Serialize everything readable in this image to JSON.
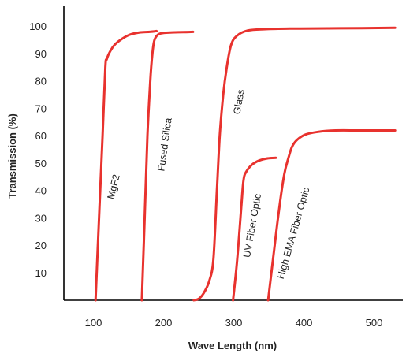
{
  "chart_data": {
    "type": "line",
    "title": "",
    "xlabel": "Wave Length (nm)",
    "ylabel": "Transmission (%)",
    "xlim": [
      50,
      530
    ],
    "ylim": [
      0,
      105
    ],
    "x_ticks": [
      100,
      200,
      300,
      400,
      500
    ],
    "y_ticks": [
      10,
      20,
      30,
      40,
      50,
      60,
      70,
      80,
      90,
      100
    ],
    "grid": false,
    "line_color": "#e8322e",
    "series": [
      {
        "name": "MgF2",
        "x": [
          103,
          108,
          113,
          117,
          119,
          124,
          131,
          141,
          152,
          166,
          180,
          190
        ],
        "y": [
          0,
          30,
          60,
          85,
          88,
          91,
          93.5,
          95.5,
          97,
          97.8,
          98,
          98.3
        ]
      },
      {
        "name": "Fused Silica",
        "x": [
          169,
          173,
          177,
          181,
          184,
          187,
          192,
          200,
          212,
          228,
          242
        ],
        "y": [
          0,
          30,
          60,
          80,
          90,
          95,
          97,
          97.6,
          97.8,
          97.9,
          98
        ]
      },
      {
        "name": "Glass",
        "x": [
          243,
          250,
          257,
          265,
          271,
          276,
          280,
          285,
          290,
          296,
          304,
          320,
          345,
          380,
          450,
          530
        ],
        "y": [
          0,
          0.5,
          2.5,
          7,
          15,
          40,
          60,
          75,
          85,
          93,
          96.5,
          98.5,
          99,
          99.2,
          99.3,
          99.5
        ]
      },
      {
        "name": "UV Fiber Optic",
        "x": [
          299,
          305,
          311,
          314,
          318,
          326,
          336,
          348,
          360
        ],
        "y": [
          0,
          15,
          35,
          44,
          47,
          49.5,
          51,
          51.8,
          52
        ]
      },
      {
        "name": "High EMA Fiber Optic",
        "x": [
          349,
          356,
          364,
          372,
          378,
          383,
          390,
          402,
          420,
          445,
          480,
          530
        ],
        "y": [
          0,
          15,
          32,
          46,
          52,
          56,
          58.5,
          60.5,
          61.5,
          62,
          62,
          62
        ]
      }
    ]
  }
}
